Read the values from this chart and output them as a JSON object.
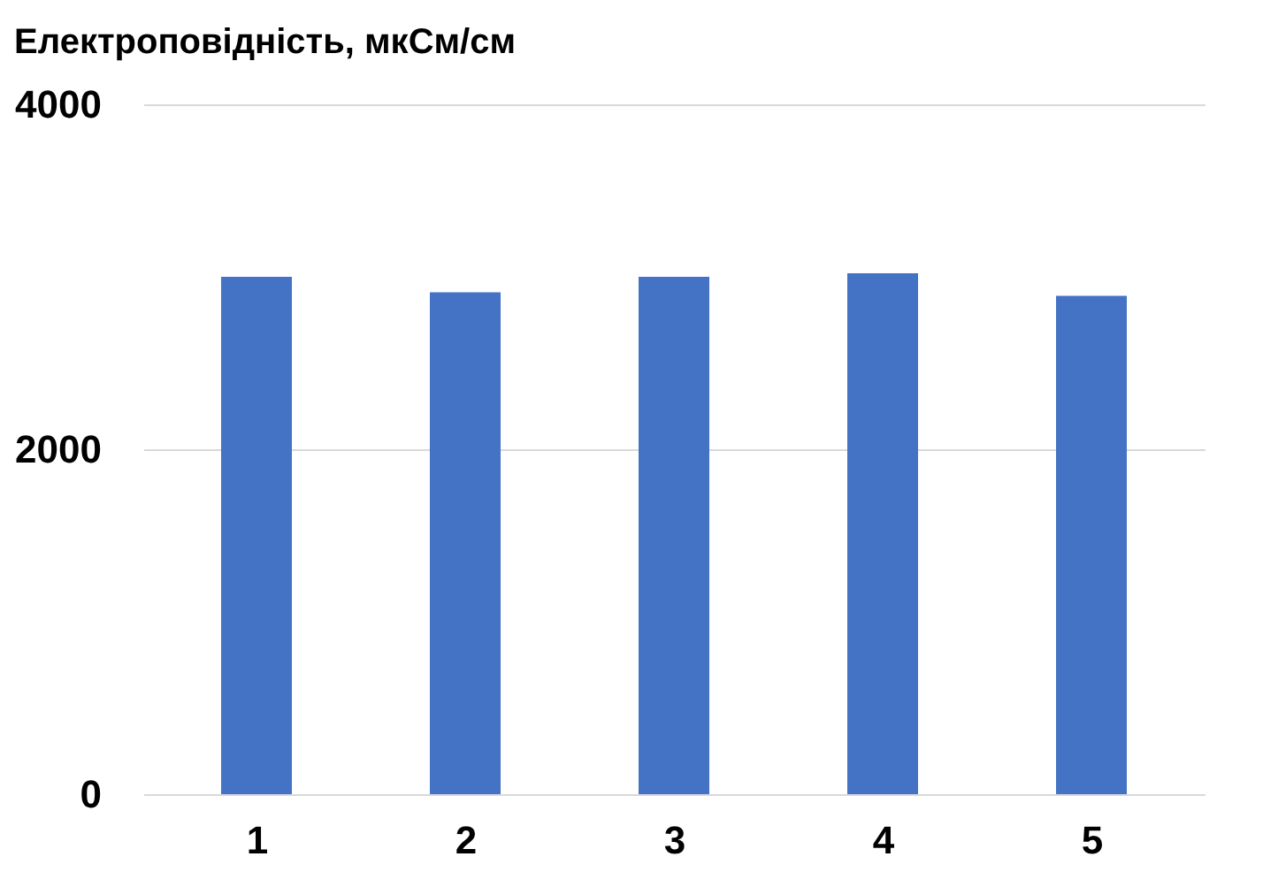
{
  "chart_data": {
    "type": "bar",
    "title": "Електроповідність,  мкСм/см",
    "categories": [
      "1",
      "2",
      "3",
      "4",
      "5"
    ],
    "values": [
      3000,
      2910,
      3000,
      3020,
      2890
    ],
    "color": "#4472c4",
    "ylim": [
      0,
      4000
    ],
    "yticks": [
      0,
      2000,
      4000
    ],
    "grid": "y"
  }
}
